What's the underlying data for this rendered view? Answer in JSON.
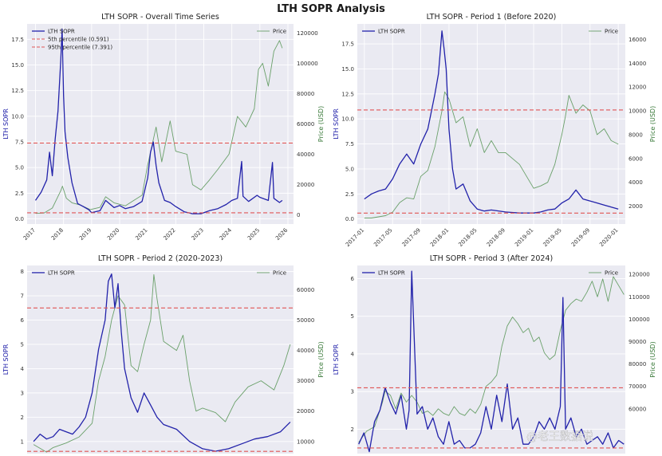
{
  "figure": {
    "title": "LTH SOPR Analysis",
    "watermark": "@老王数据说",
    "colors": {
      "sopr": "#2222aa",
      "price": "#6aa06a",
      "threshold": "#e05555",
      "panel_bg": "#eaeaf2",
      "grid": "#ffffff"
    }
  },
  "chart_data": [
    {
      "type": "line",
      "id": "overall",
      "title": "LTH SOPR - Overall Time Series",
      "ylabel": "LTH SOPR",
      "ylabel_right": "Price (USD)",
      "x_tick_labels": [
        "2017",
        "2018",
        "2019",
        "2020",
        "2021",
        "2022",
        "2023",
        "2024",
        "2025",
        "2026"
      ],
      "x_tick_values": [
        2017,
        2018,
        2019,
        2020,
        2021,
        2022,
        2023,
        2024,
        2025,
        2026
      ],
      "xlim": [
        2016.7,
        2026.2
      ],
      "ylim": [
        -0.5,
        19
      ],
      "y_ticks": [
        0.0,
        2.5,
        5.0,
        7.5,
        10.0,
        12.5,
        15.0,
        17.5
      ],
      "y_tick_labels": [
        "0.0",
        "2.5",
        "5.0",
        "7.5",
        "10.0",
        "12.5",
        "15.0",
        "17.5"
      ],
      "ylim_right": [
        -6000,
        126000
      ],
      "y_ticks_right": [
        0,
        20000,
        40000,
        60000,
        80000,
        100000,
        120000
      ],
      "y_tick_labels_right": [
        "0",
        "20000",
        "40000",
        "60000",
        "80000",
        "100000",
        "120000"
      ],
      "thresholds": [
        0.591,
        7.391
      ],
      "legend_left": [
        "LTH SOPR",
        "5th percentile (0.591)",
        "95th percentile (7.391)"
      ],
      "legend_right": [
        "Price"
      ],
      "series": [
        {
          "name": "LTH SOPR",
          "axis": "left",
          "x": [
            2017.0,
            2017.2,
            2017.4,
            2017.5,
            2017.6,
            2017.7,
            2017.8,
            2017.9,
            2017.95,
            2018.0,
            2018.05,
            2018.15,
            2018.3,
            2018.5,
            2018.7,
            2018.9,
            2019.0,
            2019.3,
            2019.5,
            2019.8,
            2020.0,
            2020.2,
            2020.5,
            2020.8,
            2021.0,
            2021.1,
            2021.2,
            2021.3,
            2021.4,
            2021.6,
            2021.8,
            2022.0,
            2022.3,
            2022.6,
            2022.9,
            2023.2,
            2023.5,
            2023.8,
            2024.0,
            2024.2,
            2024.35,
            2024.4,
            2024.6,
            2024.9,
            2025.0,
            2025.3,
            2025.45,
            2025.5,
            2025.7,
            2025.8
          ],
          "values": [
            1.8,
            2.6,
            3.8,
            6.5,
            4.2,
            7.8,
            10.5,
            15.5,
            18.5,
            12.0,
            8.5,
            6.0,
            3.5,
            1.5,
            1.2,
            0.9,
            0.6,
            0.8,
            1.8,
            1.1,
            1.3,
            1.0,
            1.2,
            1.7,
            4.0,
            6.5,
            7.5,
            5.2,
            3.5,
            1.8,
            1.6,
            1.2,
            0.7,
            0.5,
            0.5,
            0.8,
            1.0,
            1.4,
            1.8,
            2.0,
            5.6,
            2.2,
            1.7,
            2.3,
            2.1,
            1.8,
            5.5,
            2.0,
            1.6,
            1.8
          ]
        },
        {
          "name": "Price",
          "axis": "right",
          "x": [
            2017.0,
            2017.3,
            2017.6,
            2017.9,
            2017.96,
            2018.1,
            2018.3,
            2018.6,
            2018.95,
            2019.3,
            2019.5,
            2019.8,
            2020.2,
            2020.5,
            2020.8,
            2021.0,
            2021.3,
            2021.5,
            2021.8,
            2022.0,
            2022.4,
            2022.6,
            2022.9,
            2023.2,
            2023.5,
            2023.9,
            2024.2,
            2024.5,
            2024.8,
            2024.95,
            2025.1,
            2025.3,
            2025.5,
            2025.7,
            2025.8
          ],
          "values": [
            1000,
            1200,
            4500,
            16000,
            19000,
            11000,
            8000,
            6500,
            3500,
            5000,
            12000,
            8000,
            6000,
            9500,
            13000,
            33000,
            58000,
            35000,
            62000,
            42000,
            40000,
            20000,
            16500,
            23000,
            30000,
            40000,
            65000,
            58000,
            70000,
            96000,
            100000,
            85000,
            108000,
            115000,
            110000
          ]
        }
      ]
    },
    {
      "type": "line",
      "id": "period1",
      "title": "LTH SOPR - Period 1 (Before 2020)",
      "ylabel": "LTH SOPR",
      "ylabel_right": "Price (USD)",
      "x_tick_labels": [
        "2017-01",
        "2017-05",
        "2017-09",
        "2018-01",
        "2018-05",
        "2018-09",
        "2019-01",
        "2019-05",
        "2019-09",
        "2020-01"
      ],
      "x_tick_values": [
        0,
        4,
        8,
        12,
        16,
        20,
        24,
        28,
        32,
        36
      ],
      "xlim": [
        -1,
        37
      ],
      "ylim": [
        -0.5,
        19.5
      ],
      "y_ticks": [
        0.0,
        2.5,
        5.0,
        7.5,
        10.0,
        12.5,
        15.0,
        17.5
      ],
      "y_tick_labels": [
        "0.0",
        "2.5",
        "5.0",
        "7.5",
        "10.0",
        "12.5",
        "15.0",
        "17.5"
      ],
      "ylim_right": [
        500,
        17300
      ],
      "y_ticks_right": [
        2000,
        4000,
        6000,
        8000,
        10000,
        12000,
        14000,
        16000
      ],
      "y_tick_labels_right": [
        "2000",
        "4000",
        "6000",
        "8000",
        "10000",
        "12000",
        "14000",
        "16000"
      ],
      "thresholds": [
        0.591,
        10.9
      ],
      "legend_left": [
        "LTH SOPR"
      ],
      "legend_right": [
        "Price"
      ],
      "series": [
        {
          "name": "LTH SOPR",
          "axis": "left",
          "x": [
            0,
            1,
            2,
            3,
            4,
            5,
            6,
            7,
            8,
            9,
            10,
            10.5,
            11,
            11.3,
            11.6,
            12,
            12.5,
            13,
            14,
            15,
            16,
            17,
            18,
            20,
            22,
            24,
            25,
            26,
            27,
            28,
            29,
            30,
            31,
            32,
            33,
            34,
            35,
            36
          ],
          "values": [
            2.0,
            2.5,
            2.8,
            3.0,
            4.0,
            5.5,
            6.5,
            5.5,
            7.5,
            9.0,
            12.5,
            14.5,
            18.8,
            17.0,
            15.0,
            9.0,
            5.0,
            3.0,
            3.5,
            1.8,
            1.0,
            0.8,
            0.9,
            0.7,
            0.6,
            0.6,
            0.7,
            0.9,
            1.0,
            1.6,
            2.0,
            2.9,
            2.0,
            1.8,
            1.6,
            1.4,
            1.2,
            1.0
          ]
        },
        {
          "name": "Price",
          "axis": "right",
          "x": [
            0,
            1,
            2,
            3,
            4,
            5,
            6,
            7,
            8,
            9,
            10,
            11,
            11.4,
            12,
            13,
            14,
            15,
            16,
            17,
            18,
            19,
            20,
            21,
            22,
            23,
            24,
            25,
            26,
            27,
            28,
            28.5,
            29,
            30,
            31,
            32,
            33,
            34,
            35,
            36
          ],
          "values": [
            1000,
            1000,
            1100,
            1200,
            1500,
            2300,
            2700,
            2600,
            4500,
            5000,
            7000,
            10000,
            11600,
            11000,
            9000,
            9500,
            7000,
            8500,
            6500,
            7500,
            6500,
            6500,
            6000,
            5500,
            4500,
            3500,
            3700,
            4000,
            5500,
            8000,
            9500,
            11300,
            9800,
            10500,
            10000,
            8000,
            8500,
            7500,
            7200
          ]
        }
      ]
    },
    {
      "type": "line",
      "id": "period2",
      "title": "LTH SOPR - Period 2 (2020-2023)",
      "ylabel": "LTH SOPR",
      "ylabel_right": "Price (USD)",
      "x_tick_labels": [],
      "x_tick_values": [],
      "xlim": [
        2019.9,
        2024.0
      ],
      "ylim": [
        0.5,
        8.25
      ],
      "y_ticks": [
        1,
        2,
        3,
        4,
        5,
        6,
        7,
        8
      ],
      "y_tick_labels": [
        "1",
        "2",
        "3",
        "4",
        "5",
        "6",
        "7",
        "8"
      ],
      "ylim_right": [
        6000,
        68000
      ],
      "y_ticks_right": [
        10000,
        20000,
        30000,
        40000,
        50000,
        60000
      ],
      "y_tick_labels_right": [
        "10000",
        "20000",
        "30000",
        "40000",
        "50000",
        "60000"
      ],
      "thresholds": [
        0.591,
        6.5
      ],
      "legend_left": [
        "LTH SOPR"
      ],
      "legend_right": [
        "Price"
      ],
      "series": [
        {
          "name": "LTH SOPR",
          "axis": "left",
          "x": [
            2020.0,
            2020.1,
            2020.2,
            2020.3,
            2020.4,
            2020.5,
            2020.6,
            2020.7,
            2020.8,
            2020.9,
            2021.0,
            2021.1,
            2021.15,
            2021.2,
            2021.25,
            2021.3,
            2021.35,
            2021.4,
            2021.5,
            2021.6,
            2021.7,
            2021.8,
            2021.9,
            2022.0,
            2022.2,
            2022.4,
            2022.6,
            2022.8,
            2023.0,
            2023.2,
            2023.4,
            2023.6,
            2023.8,
            2023.95
          ],
          "values": [
            1.0,
            1.3,
            1.1,
            1.2,
            1.5,
            1.4,
            1.3,
            1.6,
            2.0,
            3.0,
            4.8,
            6.0,
            7.6,
            7.9,
            6.5,
            7.5,
            5.5,
            4.0,
            2.8,
            2.2,
            3.0,
            2.5,
            2.0,
            1.7,
            1.5,
            1.0,
            0.7,
            0.6,
            0.7,
            0.9,
            1.1,
            1.2,
            1.4,
            1.8
          ]
        },
        {
          "name": "Price",
          "axis": "right",
          "x": [
            2020.0,
            2020.2,
            2020.3,
            2020.5,
            2020.7,
            2020.9,
            2021.0,
            2021.1,
            2021.2,
            2021.3,
            2021.4,
            2021.5,
            2021.6,
            2021.7,
            2021.8,
            2021.85,
            2021.9,
            2022.0,
            2022.2,
            2022.3,
            2022.4,
            2022.5,
            2022.6,
            2022.8,
            2022.95,
            2023.1,
            2023.3,
            2023.5,
            2023.7,
            2023.85,
            2023.95
          ],
          "values": [
            9000,
            6500,
            8000,
            9500,
            11500,
            16000,
            30000,
            38000,
            50000,
            58000,
            55000,
            35000,
            33000,
            42000,
            50000,
            65000,
            57000,
            43000,
            40000,
            45000,
            30000,
            20000,
            21000,
            19500,
            16500,
            23000,
            28000,
            30000,
            27000,
            35000,
            42000
          ]
        }
      ]
    },
    {
      "type": "line",
      "id": "period3",
      "title": "LTH SOPR - Period 3 (After 2024)",
      "ylabel": "LTH SOPR",
      "ylabel_right": "Price (USD)",
      "x_tick_labels": [],
      "x_tick_values": [],
      "xlim": [
        -0.5,
        100.5
      ],
      "ylim": [
        1.35,
        6.35
      ],
      "y_ticks": [
        2,
        3,
        4,
        5,
        6
      ],
      "y_tick_labels": [
        "2",
        "3",
        "4",
        "5",
        "6"
      ],
      "ylim_right": [
        40000,
        124000
      ],
      "y_ticks_right": [
        60000,
        70000,
        80000,
        90000,
        100000,
        110000,
        120000
      ],
      "y_tick_labels_right": [
        "60000",
        "70000",
        "80000",
        "90000",
        "100000",
        "110000",
        "120000"
      ],
      "thresholds": [
        1.5,
        3.1
      ],
      "legend_left": [
        "LTH SOPR"
      ],
      "legend_right": [
        "Price"
      ],
      "series": [
        {
          "name": "LTH SOPR",
          "axis": "left",
          "x": [
            0,
            2,
            4,
            6,
            8,
            10,
            12,
            14,
            16,
            18,
            19,
            20,
            22,
            24,
            26,
            28,
            30,
            32,
            34,
            36,
            38,
            40,
            42,
            44,
            46,
            48,
            50,
            52,
            54,
            56,
            58,
            60,
            62,
            64,
            66,
            68,
            70,
            72,
            74,
            76,
            77,
            78,
            80,
            82,
            84,
            86,
            88,
            90,
            92,
            94,
            96,
            98,
            100
          ],
          "values": [
            1.6,
            1.9,
            1.4,
            2.2,
            2.5,
            3.1,
            2.7,
            2.4,
            2.9,
            2.0,
            2.5,
            6.2,
            2.4,
            2.6,
            2.0,
            2.3,
            1.8,
            1.6,
            2.2,
            1.6,
            1.7,
            1.5,
            1.5,
            1.6,
            1.9,
            2.6,
            2.0,
            2.9,
            2.2,
            3.2,
            2.0,
            2.3,
            1.6,
            1.6,
            1.8,
            2.2,
            2.0,
            2.3,
            2.0,
            2.6,
            5.5,
            2.0,
            2.3,
            1.8,
            2.0,
            1.6,
            1.7,
            1.8,
            1.6,
            1.9,
            1.5,
            1.7,
            1.6
          ]
        },
        {
          "name": "Price",
          "axis": "right",
          "x": [
            0,
            3,
            6,
            9,
            10,
            12,
            14,
            16,
            18,
            20,
            22,
            24,
            26,
            28,
            30,
            32,
            34,
            36,
            38,
            40,
            42,
            44,
            46,
            48,
            50,
            52,
            54,
            56,
            58,
            60,
            62,
            64,
            66,
            68,
            70,
            72,
            74,
            76,
            78,
            80,
            82,
            84,
            86,
            88,
            90,
            92,
            94,
            96,
            98,
            100
          ],
          "values": [
            45000,
            50000,
            52000,
            63000,
            68000,
            66000,
            60000,
            67000,
            63000,
            66000,
            63000,
            58000,
            59000,
            57000,
            60000,
            58000,
            57000,
            61000,
            58000,
            57000,
            60000,
            58000,
            62000,
            70000,
            72000,
            75000,
            88000,
            97000,
            101000,
            98000,
            94000,
            96000,
            90000,
            92000,
            85000,
            82000,
            84000,
            95000,
            104000,
            107000,
            109000,
            108000,
            112000,
            117000,
            110000,
            118000,
            108000,
            119000,
            115000,
            111000
          ]
        }
      ]
    }
  ]
}
